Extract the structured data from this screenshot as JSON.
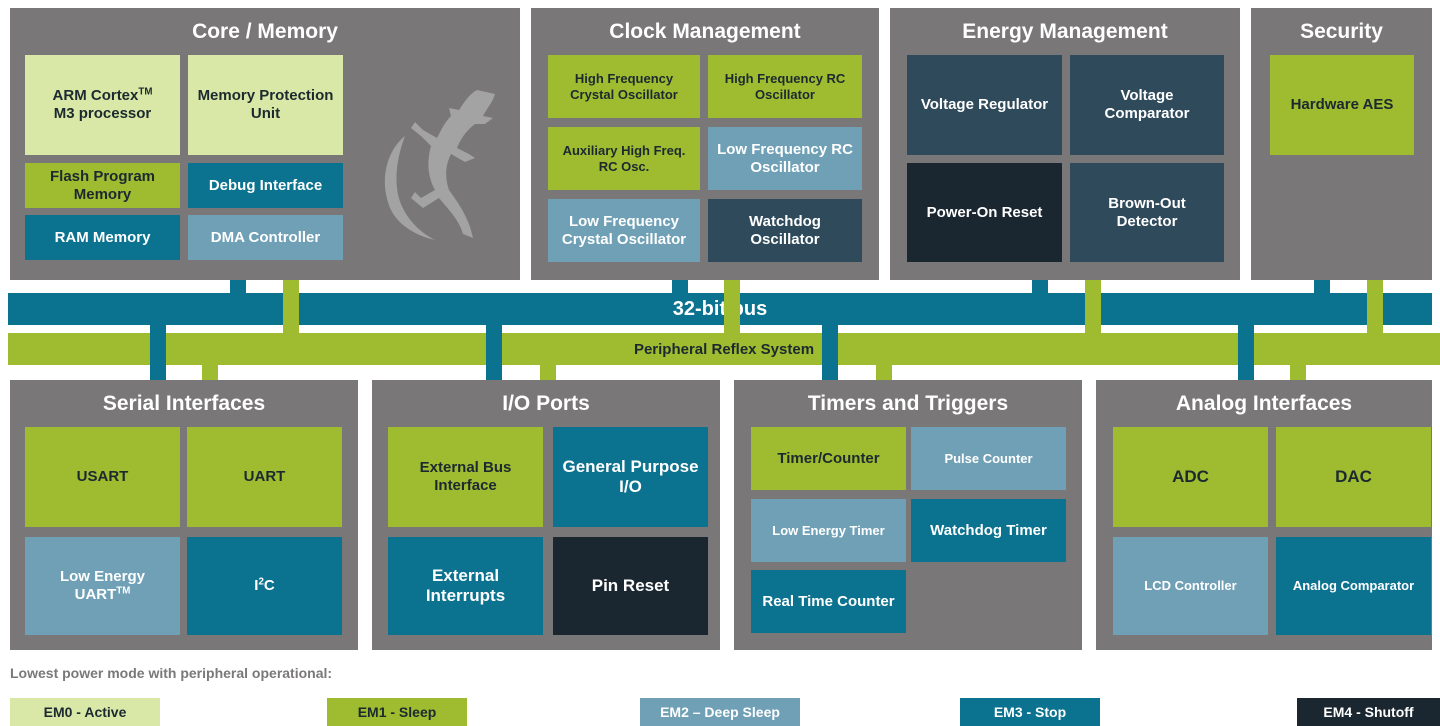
{
  "panels": [
    {
      "title": "Core / Memory",
      "blocks": [
        {
          "text": "ARM Cortex",
          "sup": "TM",
          "after": "M3 processor",
          "color": "#d9e8a6"
        },
        {
          "text": "Memory Protection Unit",
          "color": "#d9e8a6"
        },
        {
          "text": "Flash Program Memory",
          "color": "#9fbb2f"
        },
        {
          "text": "Debug Interface",
          "color": "#0b7290"
        },
        {
          "text": "RAM Memory",
          "color": "#0b7290"
        },
        {
          "text": "DMA Controller",
          "color": "#6fa0b6"
        }
      ]
    },
    {
      "title": "Clock Management",
      "blocks": [
        {
          "text": "High Frequency Crystal Oscillator",
          "color": "#9fbb2f"
        },
        {
          "text": "High Frequency RC Oscillator",
          "color": "#9fbb2f"
        },
        {
          "text": "Auxiliary High Freq. RC Osc.",
          "color": "#9fbb2f"
        },
        {
          "text": "Low Frequency RC Oscillator",
          "color": "#6fa0b6"
        },
        {
          "text": "Low Frequency Crystal Oscillator",
          "color": "#6fa0b6"
        },
        {
          "text": "Watchdog Oscillator",
          "color": "#2e4a5b"
        }
      ]
    },
    {
      "title": "Energy Management",
      "blocks": [
        {
          "text": "Voltage Regulator",
          "color": "#2e4a5b"
        },
        {
          "text": "Voltage Comparator",
          "color": "#2e4a5b"
        },
        {
          "text": "Power-On Reset",
          "color": "#1b2730"
        },
        {
          "text": "Brown-Out Detector",
          "color": "#2e4a5b"
        }
      ]
    },
    {
      "title": "Security",
      "blocks": [
        {
          "text": "Hardware AES",
          "color": "#9fbb2f"
        }
      ]
    },
    {
      "title": "Serial Interfaces",
      "blocks": [
        {
          "text": "USART",
          "color": "#9fbb2f"
        },
        {
          "text": "UART",
          "color": "#9fbb2f"
        },
        {
          "text": "Low Energy UART",
          "sup": "TM",
          "color": "#6fa0b6"
        },
        {
          "text": "I",
          "sup": "2",
          "after": "C",
          "color": "#0b7290"
        }
      ]
    },
    {
      "title": "I/O Ports",
      "blocks": [
        {
          "text": "External Bus Interface",
          "color": "#9fbb2f"
        },
        {
          "text": "General Purpose I/O",
          "color": "#0b7290"
        },
        {
          "text": "External Interrupts",
          "color": "#0b7290"
        },
        {
          "text": "Pin Reset",
          "color": "#1b2730"
        }
      ]
    },
    {
      "title": "Timers and Triggers",
      "blocks": [
        {
          "text": "Timer/Counter",
          "color": "#9fbb2f"
        },
        {
          "text": "Pulse Counter",
          "color": "#6fa0b6"
        },
        {
          "text": "Low Energy Timer",
          "color": "#6fa0b6"
        },
        {
          "text": "Watchdog Timer",
          "color": "#0b7290"
        },
        {
          "text": "Real Time Counter",
          "color": "#0b7290"
        }
      ]
    },
    {
      "title": "Analog Interfaces",
      "blocks": [
        {
          "text": "ADC",
          "color": "#9fbb2f"
        },
        {
          "text": "DAC",
          "color": "#9fbb2f"
        },
        {
          "text": "LCD Controller",
          "color": "#6fa0b6"
        },
        {
          "text": "Analog Comparator",
          "color": "#0b7290"
        }
      ]
    }
  ],
  "bus": {
    "label": "32-bit bus",
    "color": "#0b7290"
  },
  "prs": {
    "label": "Peripheral Reflex System",
    "color": "#9fbb2f"
  },
  "legend": {
    "title": "Lowest power mode with peripheral operational:",
    "items": [
      {
        "label": "EM0 - Active",
        "color": "#d9e8a6"
      },
      {
        "label": "EM1 - Sleep",
        "color": "#9fbb2f"
      },
      {
        "label": "EM2 – Deep Sleep",
        "color": "#6fa0b6"
      },
      {
        "label": "EM3 - Stop",
        "color": "#0b7290"
      },
      {
        "label": "EM4 - Shutoff",
        "color": "#1b2730"
      }
    ]
  }
}
